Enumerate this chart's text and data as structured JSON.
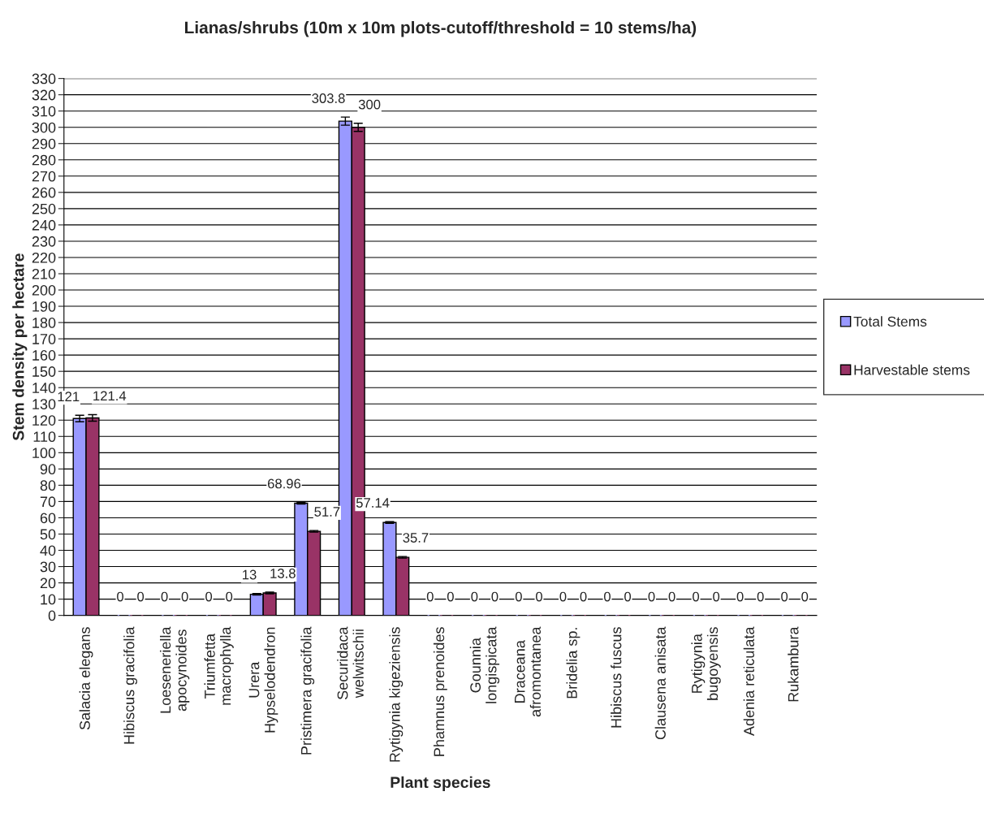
{
  "chart_data": {
    "type": "bar",
    "title": "Lianas/shrubs (10m x 10m plots-cutoff/threshold = 10 stems/ha)",
    "xlabel": "Plant species",
    "ylabel": "Stem density per hectare",
    "categories": [
      "Salacia elegans",
      "Hibiscus gracifolia",
      "Loeseneriella\napocynoides",
      "Triumfetta\nmacrophylla",
      "Urera\nHypselodendron",
      "Pristimera gracifolia",
      "Securidaca\nwelwitschii",
      "Rytigynia kigeziensis",
      "Phamnus prenoides",
      "Gounnia\nlongispicata",
      "Draceana\nafromontanea",
      "Bridelia sp.",
      "Hibiscus fuscus",
      "Clausena anisata",
      "Rytigynia\nbugoyensis",
      "Adenia reticulata",
      "Rukambura"
    ],
    "series": [
      {
        "name": "Total Stems",
        "color": "#9999ff",
        "values": [
          121,
          0,
          0,
          0,
          13,
          68.96,
          303.8,
          57.14,
          0,
          0,
          0,
          0,
          0,
          0,
          0,
          0,
          0
        ],
        "errors": [
          2,
          null,
          null,
          null,
          0.5,
          0.5,
          2.5,
          0.5,
          null,
          null,
          null,
          null,
          null,
          null,
          null,
          null,
          null
        ]
      },
      {
        "name": "Harvestable stems",
        "color": "#993366",
        "values": [
          121.4,
          0,
          0,
          0,
          13.8,
          51.7,
          300,
          35.7,
          0,
          0,
          0,
          0,
          0,
          0,
          0,
          0,
          0
        ],
        "errors": [
          2,
          null,
          null,
          null,
          0.5,
          0.5,
          2.5,
          0.5,
          null,
          null,
          null,
          null,
          null,
          null,
          null,
          null,
          null
        ]
      }
    ],
    "ylim": [
      0,
      330
    ],
    "yticks": [
      0,
      10,
      20,
      30,
      40,
      50,
      60,
      70,
      80,
      90,
      100,
      110,
      120,
      130,
      140,
      150,
      160,
      170,
      180,
      190,
      200,
      210,
      220,
      230,
      240,
      250,
      260,
      270,
      280,
      290,
      300,
      310,
      320,
      330
    ],
    "grid": "y",
    "legend": "right",
    "data_labels": true
  }
}
